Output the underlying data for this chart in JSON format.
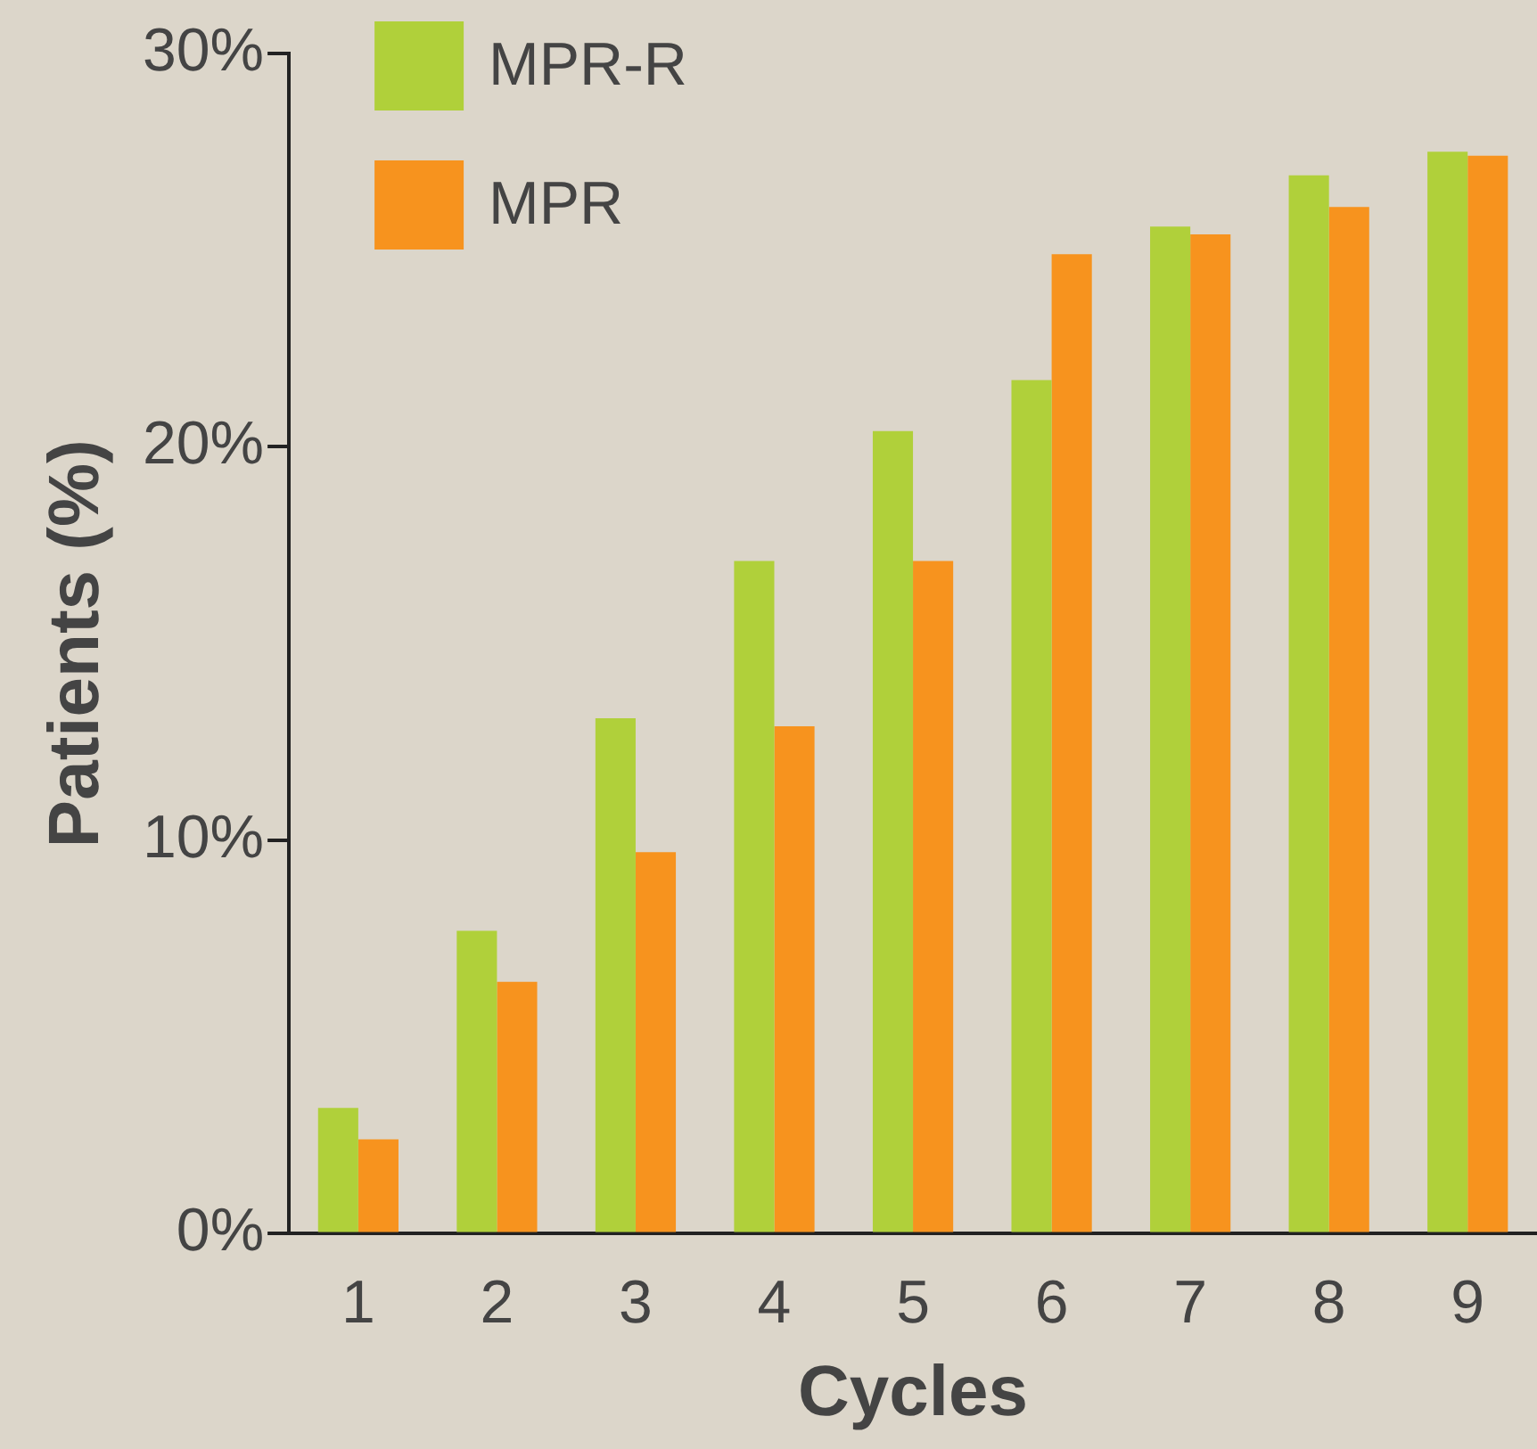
{
  "chart_data": {
    "type": "bar",
    "xlabel": "Cycles",
    "ylabel": "Patients (%)",
    "categories": [
      "1",
      "2",
      "3",
      "4",
      "5",
      "6",
      "7",
      "8",
      "9"
    ],
    "series": [
      {
        "name": "MPR-R",
        "color": "#b0d03a",
        "values": [
          3.2,
          7.7,
          13.1,
          17.1,
          20.4,
          21.7,
          25.6,
          26.9,
          27.5
        ]
      },
      {
        "name": "MPR",
        "color": "#f7931e",
        "values": [
          2.4,
          6.4,
          9.7,
          12.9,
          17.1,
          24.9,
          25.4,
          26.1,
          27.4
        ]
      }
    ],
    "ylim": [
      0,
      30
    ],
    "yticks": [
      {
        "value": 0,
        "label": "0%"
      },
      {
        "value": 10,
        "label": "10%"
      },
      {
        "value": 20,
        "label": "20%"
      },
      {
        "value": 30,
        "label": "30%"
      }
    ],
    "grid": false,
    "legend": "top left"
  }
}
